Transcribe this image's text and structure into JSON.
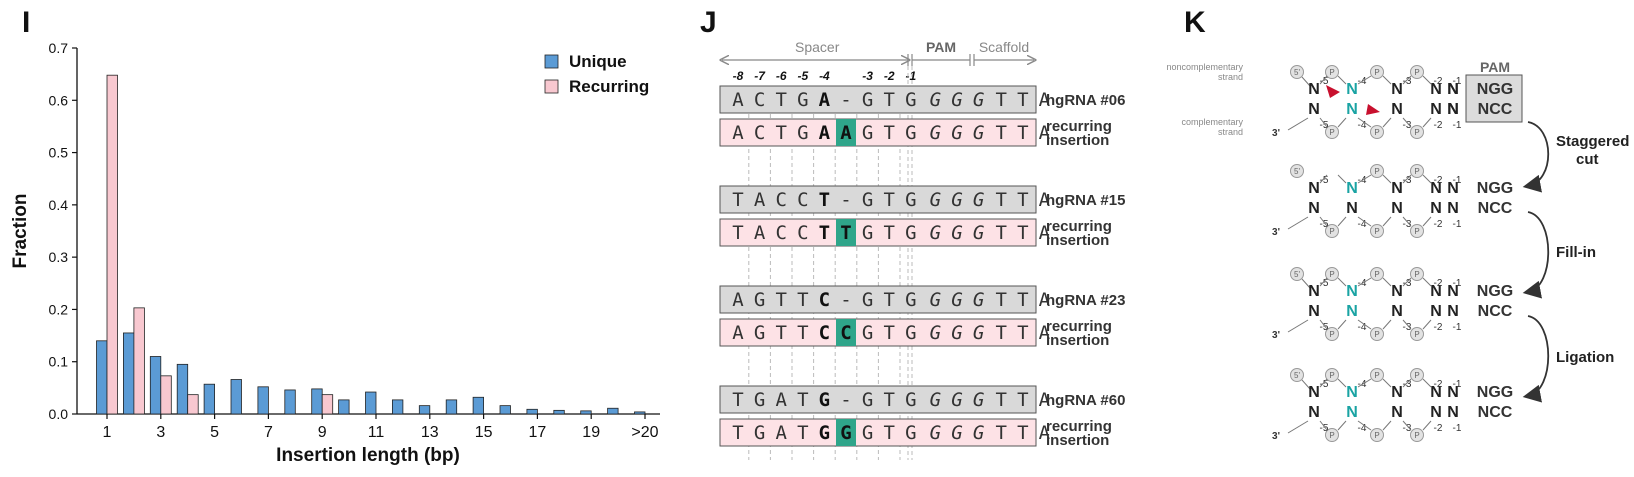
{
  "panels": {
    "I": {
      "letter": "I"
    },
    "J": {
      "letter": "J"
    },
    "K": {
      "letter": "K"
    }
  },
  "chart_data": {
    "type": "bar",
    "xlabel": "Insertion length (bp)",
    "ylabel": "Fraction",
    "ylim": [
      0,
      0.7
    ],
    "yticks": [
      "0.0",
      "0.1",
      "0.2",
      "0.3",
      "0.4",
      "0.5",
      "0.6",
      "0.7"
    ],
    "categories": [
      "1",
      "2",
      "3",
      "4",
      "5",
      "6",
      "7",
      "8",
      "9",
      "10",
      "11",
      "12",
      "13",
      "14",
      "15",
      "16",
      "17",
      "18",
      "19",
      "20",
      ">20"
    ],
    "xtick_labels": [
      "1",
      "3",
      "5",
      "7",
      "9",
      "11",
      "13",
      "15",
      "17",
      "19",
      ">20"
    ],
    "legend_position": "top-right",
    "colors": {
      "Unique": "#5b9bd5",
      "Recurring": "#f8c8d0"
    },
    "series": [
      {
        "name": "Unique",
        "values": [
          0.14,
          0.155,
          0.11,
          0.095,
          0.057,
          0.066,
          0.052,
          0.046,
          0.048,
          0.027,
          0.042,
          0.027,
          0.016,
          0.027,
          0.032,
          0.016,
          0.009,
          0.007,
          0.006,
          0.011,
          0.004
        ]
      },
      {
        "name": "Recurring",
        "values": [
          0.648,
          0.203,
          0.073,
          0.037,
          0,
          0,
          0,
          0,
          0.037,
          0,
          0,
          0,
          0,
          0,
          0,
          0,
          0,
          0,
          0,
          0,
          0
        ]
      }
    ]
  },
  "panelJ": {
    "header": {
      "spacer": "Spacer",
      "pam": "PAM",
      "scaffold": "Scaffold"
    },
    "positions": [
      "-8",
      "-7",
      "-6",
      "-5",
      "-4",
      "-3",
      "-2",
      "-1"
    ],
    "rows": [
      {
        "label": "hgRNA #06",
        "pre": "ACTG",
        "bold": "A",
        "mid": "-",
        "post": "GTG",
        "pam": "GGG",
        "tail": "TTA",
        "kind": "ref"
      },
      {
        "label": "recurring insertion",
        "label1": "recurring",
        "label2": "insertion",
        "pre": "ACTG",
        "bold": "A",
        "mid": "A",
        "post": "GTG",
        "pam": "GGG",
        "tail": "TTA",
        "kind": "ins"
      },
      {
        "label": "hgRNA #15",
        "pre": "TACC",
        "bold": "T",
        "mid": "-",
        "post": "GTG",
        "pam": "GGG",
        "tail": "TTA",
        "kind": "ref"
      },
      {
        "label": "recurring insertion",
        "label1": "recurring",
        "label2": "insertion",
        "pre": "TACC",
        "bold": "T",
        "mid": "T",
        "post": "GTG",
        "pam": "GGG",
        "tail": "TTA",
        "kind": "ins"
      },
      {
        "label": "hgRNA #23",
        "pre": "AGTT",
        "bold": "C",
        "mid": "-",
        "post": "GTG",
        "pam": "GGG",
        "tail": "TTA",
        "kind": "ref"
      },
      {
        "label": "recurring insertion",
        "label1": "recurring",
        "label2": "insertion",
        "pre": "AGTT",
        "bold": "C",
        "mid": "C",
        "post": "GTG",
        "pam": "GGG",
        "tail": "TTA",
        "kind": "ins"
      },
      {
        "label": "hgRNA #60",
        "pre": "TGAT",
        "bold": "G",
        "mid": "-",
        "post": "GTG",
        "pam": "GGG",
        "tail": "TTA",
        "kind": "ref"
      },
      {
        "label": "recurring insertion",
        "label1": "recurring",
        "label2": "insertion",
        "pre": "TGAT",
        "bold": "G",
        "mid": "G",
        "post": "GTG",
        "pam": "GGG",
        "tail": "TTA",
        "kind": "ins"
      }
    ]
  },
  "panelK": {
    "strand_top": "noncomplementary strand",
    "strand_top1": "noncomplementary",
    "strand_top2": "strand",
    "strand_bottom": "complementary strand",
    "strand_bottom1": "complementary",
    "strand_bottom2": "strand",
    "pam_label": "PAM",
    "ngg": "NGG",
    "ncc": "NCC",
    "n": "N",
    "p": "P",
    "five": "5'",
    "three": "3'",
    "nums": {
      "m5": "-5",
      "m4": "-4",
      "m3": "-3",
      "m2": "-2",
      "m1": "-1"
    },
    "steps": [
      "Staggered cut",
      "Fill-in",
      "Ligation"
    ],
    "step1a": "Staggered",
    "step1b": "cut"
  }
}
